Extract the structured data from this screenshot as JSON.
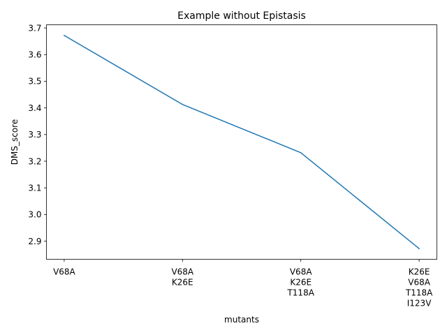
{
  "chart_data": {
    "type": "line",
    "title": "Example without Epistasis",
    "xlabel": "mutants",
    "ylabel": "DMS_score",
    "categories": [
      [
        "V68A"
      ],
      [
        "V68A",
        "K26E"
      ],
      [
        "V68A",
        "K26E",
        "T118A"
      ],
      [
        "K26E",
        "V68A",
        "T118A",
        "I123V"
      ]
    ],
    "series": [
      {
        "values": [
          3.672,
          3.413,
          3.232,
          2.872
        ],
        "color": "#1f77b4"
      }
    ],
    "ylim": [
      2.832,
      3.712
    ],
    "yticks": [
      2.9,
      3.0,
      3.1,
      3.2,
      3.3,
      3.4,
      3.5,
      3.6,
      3.7
    ],
    "ytick_labels": [
      "2.9",
      "3.0",
      "3.1",
      "3.2",
      "3.3",
      "3.4",
      "3.5",
      "3.6",
      "3.7"
    ],
    "grid": false,
    "legend": false
  }
}
